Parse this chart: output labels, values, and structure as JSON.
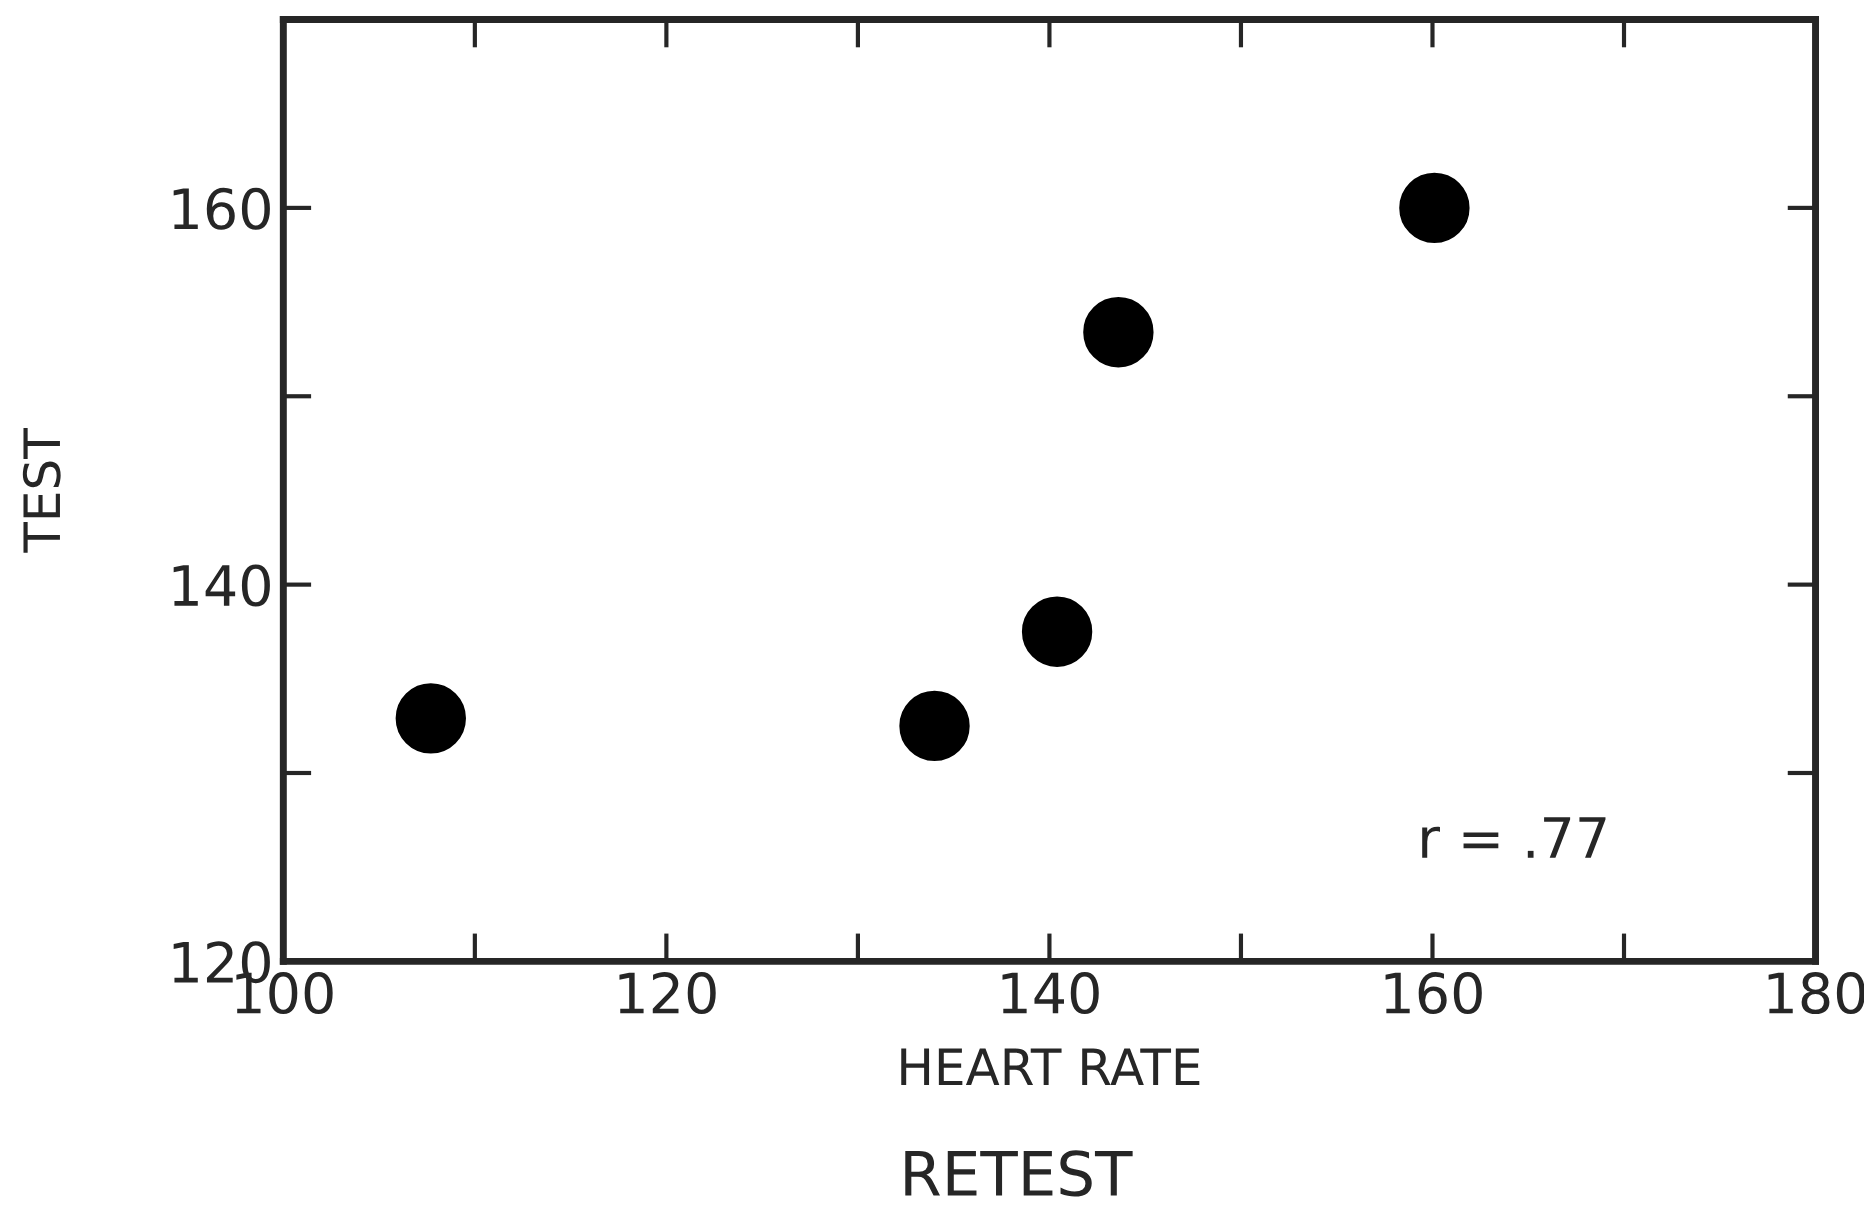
{
  "chart_data": {
    "type": "scatter",
    "xlabel": "HEART RATE",
    "ylabel": "TEST",
    "annotations": [
      "r = .77",
      "RETEST"
    ],
    "x": [
      107.7,
      134,
      140.4,
      143.6,
      160.1
    ],
    "series": [
      {
        "color": "#000000",
        "values": [
          132.9,
          132.5,
          137.5,
          153.4,
          160
        ]
      }
    ],
    "xlim": [
      100,
      180
    ],
    "ylim": [
      120,
      170
    ],
    "xticks": [
      100,
      {
        "value": 110,
        "label": null
      },
      120,
      {
        "value": 130,
        "label": null
      },
      140,
      {
        "value": 150,
        "label": null
      },
      160,
      {
        "value": 170,
        "label": null
      },
      180
    ],
    "yticks": [
      120,
      {
        "value": 130,
        "label": null
      },
      140,
      {
        "value": 150,
        "label": null
      },
      160
    ],
    "marker": "circle",
    "grid": false,
    "legend": false
  }
}
